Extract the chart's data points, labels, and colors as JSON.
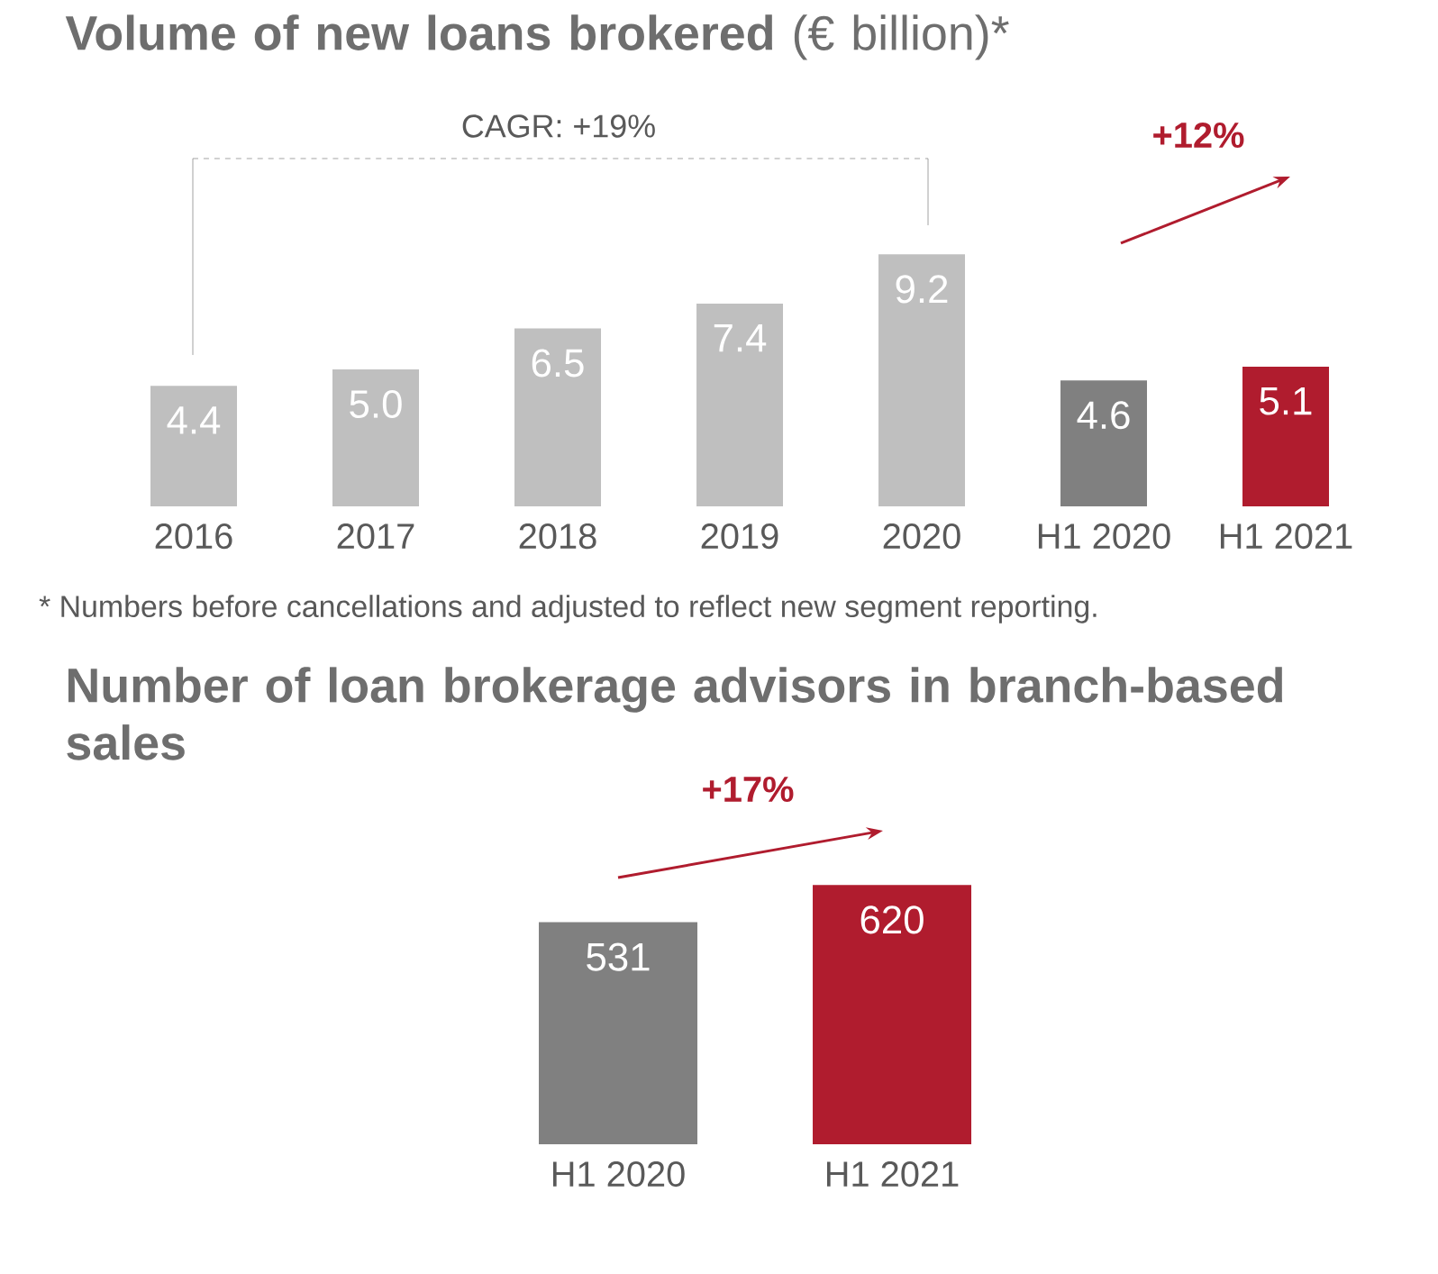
{
  "chart_data": [
    {
      "type": "bar",
      "title": "**Volume of new loans brokered** (€ billion)*",
      "categories": [
        "2016",
        "2017",
        "2018",
        "2019",
        "2020",
        "H1 2020",
        "H1 2021"
      ],
      "values": [
        4.4,
        5.0,
        6.5,
        7.4,
        9.2,
        4.6,
        5.1
      ],
      "colors": [
        "#bfbfbf",
        "#bfbfbf",
        "#bfbfbf",
        "#bfbfbf",
        "#bfbfbf",
        "#808080",
        "#b01c2e"
      ],
      "value_labels": [
        "4.4",
        "5.0",
        "6.5",
        "7.4",
        "9.2",
        "4.6",
        "5.1"
      ],
      "annotations": [
        "CAGR: +19%",
        "+12%",
        "* Numbers before cancellations and adjusted to reflect new segment reporting."
      ]
    },
    {
      "type": "bar",
      "title": "Number of loan brokerage advisors in branch-based sales",
      "categories": [
        "H1 2020",
        "H1 2021"
      ],
      "values": [
        531,
        620
      ],
      "colors": [
        "#808080",
        "#b01c2e"
      ],
      "value_labels": [
        "531",
        "620"
      ],
      "annotations": [
        "+17%"
      ]
    }
  ]
}
